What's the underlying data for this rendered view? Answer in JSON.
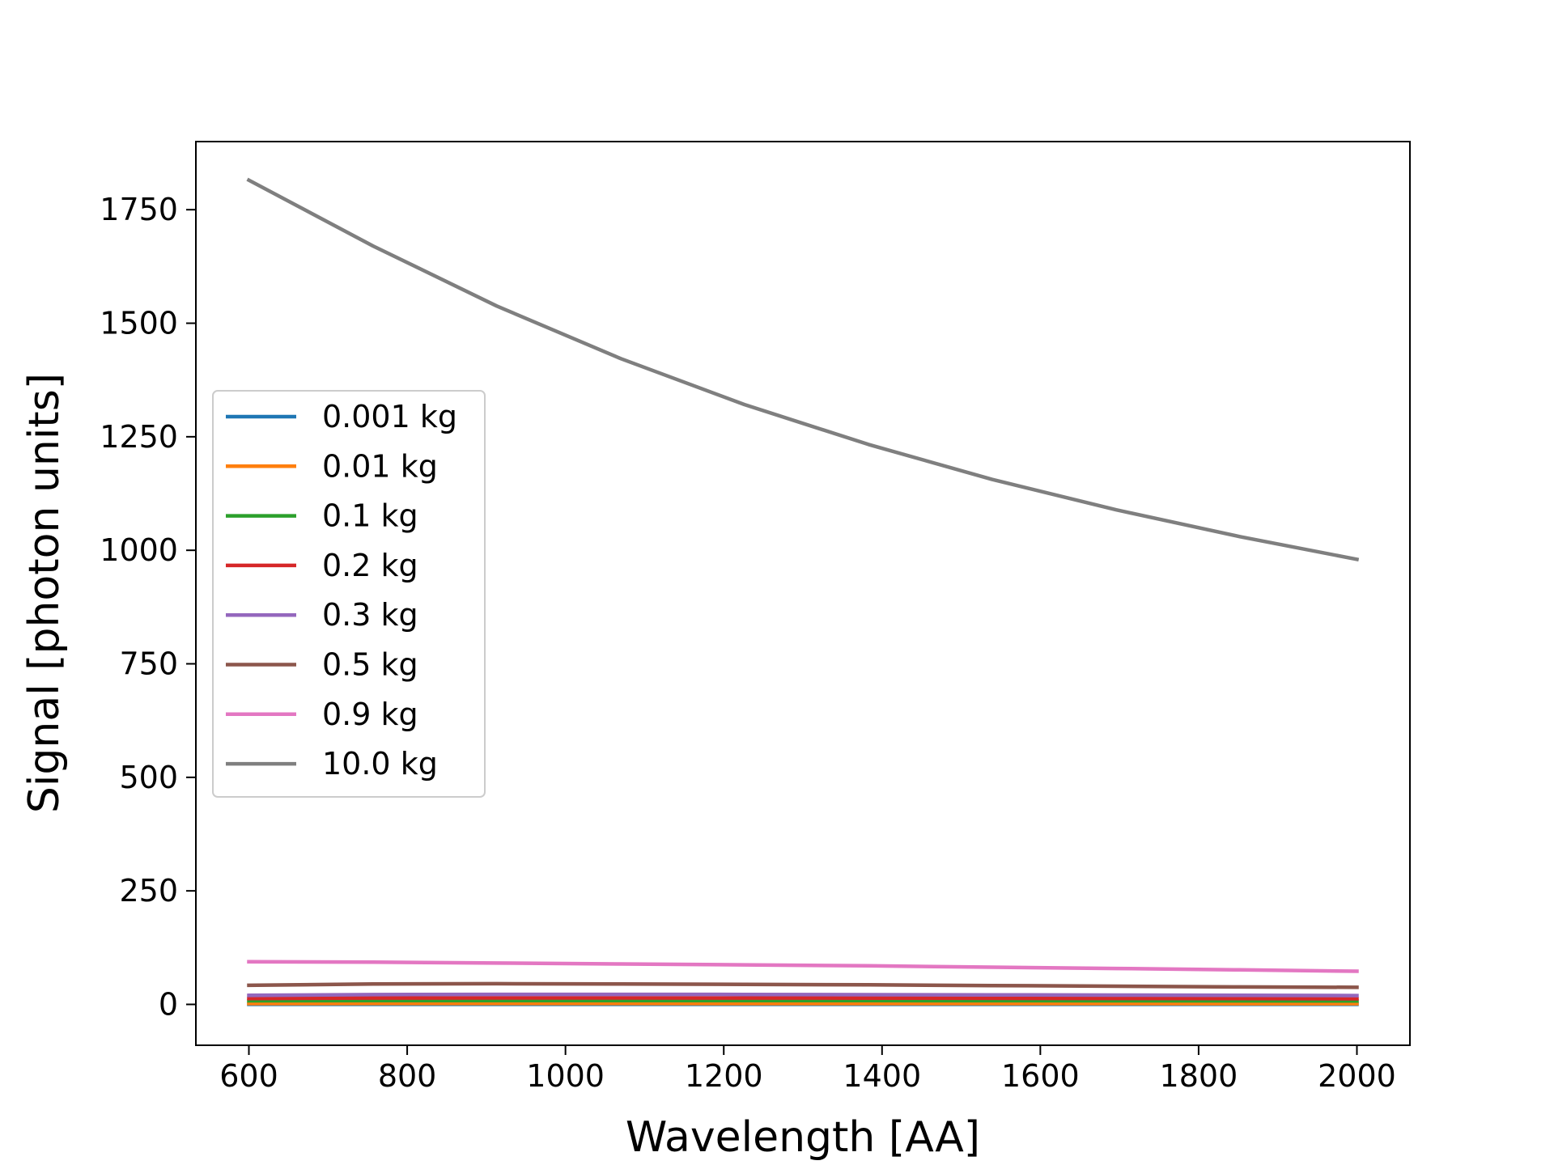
{
  "chart_data": {
    "type": "line",
    "title": "",
    "xlabel": "Wavelength [AA]",
    "ylabel": "Signal [photon units]",
    "xlim": [
      533,
      2067
    ],
    "ylim": [
      -90,
      1900
    ],
    "xticks": [
      600,
      800,
      1000,
      1200,
      1400,
      1600,
      1800,
      2000
    ],
    "yticks": [
      0,
      250,
      500,
      750,
      1000,
      1250,
      1500,
      1750
    ],
    "grid": false,
    "legend_position": "center-left",
    "x": [
      600,
      757,
      913,
      1070,
      1226,
      1383,
      1539,
      1696,
      1852,
      2000
    ],
    "series": [
      {
        "name": "0.001 kg",
        "color": "#1f77b4",
        "values": [
          0.2,
          0.2,
          0.2,
          0.2,
          0.2,
          0.2,
          0.2,
          0.2,
          0.2,
          0.2
        ]
      },
      {
        "name": "0.01 kg",
        "color": "#ff7f0e",
        "values": [
          1.8,
          1.9,
          1.9,
          1.9,
          1.8,
          1.8,
          1.7,
          1.7,
          1.6,
          1.5
        ]
      },
      {
        "name": "0.1 kg",
        "color": "#2ca02c",
        "values": [
          8,
          8.5,
          8.6,
          8.6,
          8.5,
          8.4,
          8.2,
          8,
          7.8,
          7.5
        ]
      },
      {
        "name": "0.2 kg",
        "color": "#d62728",
        "values": [
          13,
          14,
          14.2,
          14.2,
          14,
          13.8,
          13.5,
          13.2,
          12.8,
          12.4
        ]
      },
      {
        "name": "0.3 kg",
        "color": "#9467bd",
        "values": [
          20,
          21.5,
          22,
          22,
          21.8,
          21.4,
          21,
          20.5,
          20,
          19.4
        ]
      },
      {
        "name": "0.5 kg",
        "color": "#8c564b",
        "values": [
          42,
          45,
          45.5,
          45,
          44,
          43,
          41.5,
          40,
          38.5,
          37.5
        ]
      },
      {
        "name": "0.9 kg",
        "color": "#e377c2",
        "values": [
          94,
          93,
          91,
          89,
          87,
          85,
          82,
          79,
          76,
          73
        ]
      },
      {
        "name": "10.0 kg",
        "color": "#7f7f7f",
        "values": [
          1815,
          1670,
          1538,
          1422,
          1321,
          1233,
          1156,
          1089,
          1030,
          980
        ]
      }
    ]
  }
}
